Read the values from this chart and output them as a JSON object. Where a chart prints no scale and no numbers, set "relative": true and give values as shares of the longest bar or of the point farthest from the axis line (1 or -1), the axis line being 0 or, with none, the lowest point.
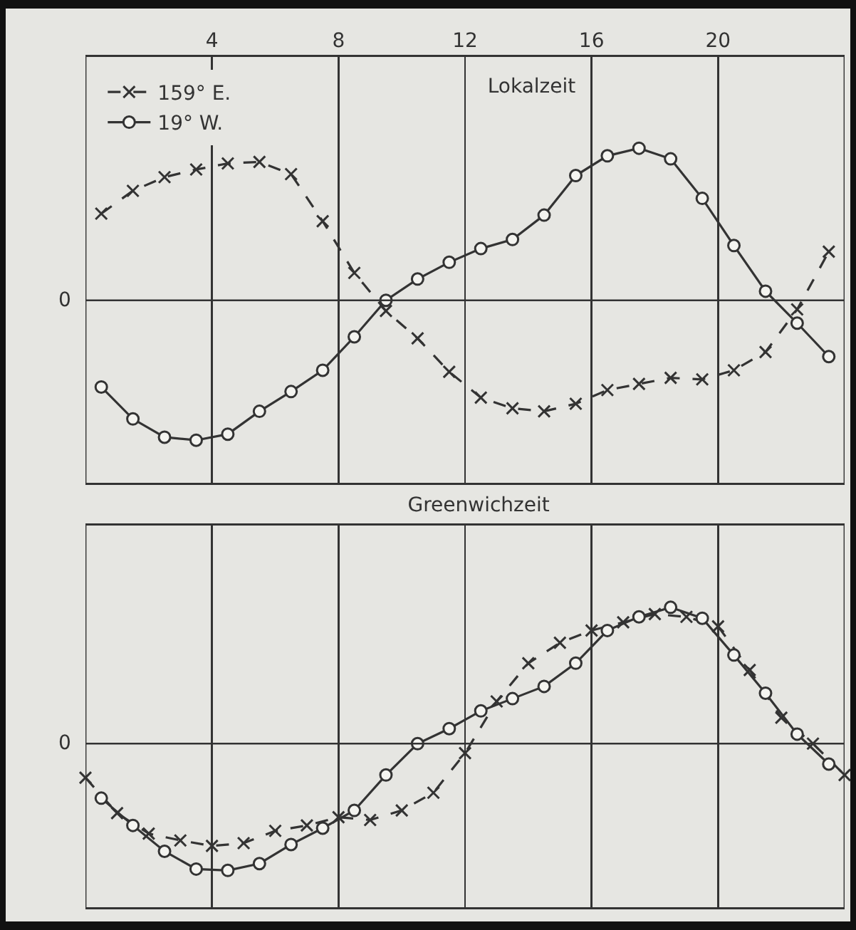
{
  "chart_data": [
    {
      "type": "line",
      "title": "Lokalzeit",
      "relative": true,
      "xlim": [
        0,
        24
      ],
      "xticks": [
        4,
        8,
        12,
        16,
        20
      ],
      "grid": "x",
      "legend": "top left",
      "ref_lines": [
        {
          "axis": "y",
          "value": 0,
          "label": "0"
        }
      ],
      "x": [
        0.5,
        1.5,
        2.5,
        3.5,
        4.5,
        5.5,
        6.5,
        7.5,
        8.5,
        9.5,
        10.5,
        11.5,
        12.5,
        13.5,
        14.5,
        15.5,
        16.5,
        17.5,
        18.5,
        19.5,
        20.5,
        21.5,
        22.5,
        23.5
      ],
      "series": [
        {
          "name": "159° E.",
          "color": "#333333",
          "marker": "cross",
          "line_style": "dashed",
          "values": [
            0.57,
            0.72,
            0.81,
            0.86,
            0.9,
            0.91,
            0.83,
            0.52,
            0.18,
            -0.07,
            -0.25,
            -0.47,
            -0.64,
            -0.71,
            -0.73,
            -0.68,
            -0.59,
            -0.55,
            -0.51,
            -0.52,
            -0.46,
            -0.34,
            -0.06,
            0.32
          ]
        },
        {
          "name": "19° W.",
          "color": "#333333",
          "marker": "circle",
          "line_style": "solid",
          "values": [
            -0.57,
            -0.78,
            -0.9,
            -0.92,
            -0.88,
            -0.73,
            -0.6,
            -0.46,
            -0.24,
            0,
            0.14,
            0.25,
            0.34,
            0.4,
            0.56,
            0.82,
            0.95,
            1,
            0.93,
            0.67,
            0.36,
            0.06,
            -0.15,
            -0.37
          ]
        }
      ]
    },
    {
      "type": "line",
      "title": "Greenwichzeit",
      "relative": true,
      "xlim": [
        0,
        24
      ],
      "xticks": [
        4,
        8,
        12,
        16,
        20
      ],
      "tick_labels": "y",
      "grid": "x",
      "ref_lines": [
        {
          "axis": "y",
          "value": 0,
          "label": "0"
        }
      ],
      "x": [
        0.5,
        1.5,
        2.5,
        3.5,
        4.5,
        5.5,
        6.5,
        7.5,
        8.5,
        9.5,
        10.5,
        11.5,
        12.5,
        13.5,
        14.5,
        15.5,
        16.5,
        17.5,
        18.5,
        19.5,
        20.5,
        21.5,
        22.5,
        23.5
      ],
      "series": [
        {
          "color": "#333333",
          "marker": "cross",
          "line_style": "dashed",
          "x": [
            0,
            1,
            2,
            3,
            4,
            5,
            6,
            7,
            8,
            9,
            10,
            11,
            12,
            13,
            14,
            15,
            16,
            17,
            18,
            19,
            20,
            21,
            22,
            23,
            24
          ],
          "values": [
            -0.25,
            -0.51,
            -0.66,
            -0.71,
            -0.75,
            -0.73,
            -0.64,
            -0.6,
            -0.54,
            -0.56,
            -0.49,
            -0.36,
            -0.07,
            0.31,
            0.59,
            0.74,
            0.83,
            0.89,
            0.95,
            0.93,
            0.86,
            0.54,
            0.19,
            0,
            -0.23
          ]
        },
        {
          "color": "#333333",
          "marker": "circle",
          "line_style": "solid",
          "values": [
            -0.4,
            -0.6,
            -0.79,
            -0.92,
            -0.93,
            -0.88,
            -0.74,
            -0.62,
            -0.49,
            -0.23,
            0,
            0.11,
            0.24,
            0.33,
            0.42,
            0.59,
            0.83,
            0.93,
            1,
            0.92,
            0.65,
            0.37,
            0.07,
            -0.15
          ]
        }
      ]
    }
  ]
}
